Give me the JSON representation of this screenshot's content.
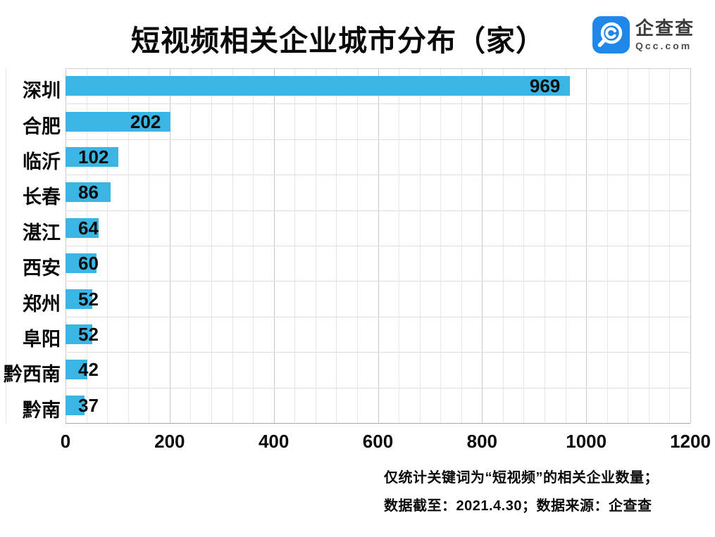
{
  "title": "短视频相关企业城市分布（家）",
  "logo": {
    "name": "企查查",
    "domain": "Qcc.com",
    "brand_color": "#1E87E8"
  },
  "chart_data": {
    "type": "bar",
    "orientation": "horizontal",
    "title": "短视频相关企业城市分布（家）",
    "categories": [
      "深圳",
      "合肥",
      "临沂",
      "长春",
      "湛江",
      "西安",
      "郑州",
      "阜阳",
      "黔西南",
      "黔南"
    ],
    "values": [
      969,
      202,
      102,
      86,
      64,
      60,
      52,
      52,
      42,
      37
    ],
    "xlim": [
      0,
      1200
    ],
    "x_ticks": [
      0,
      200,
      400,
      600,
      800,
      1000,
      1200
    ],
    "minor_tick_step": 40,
    "grid": "on",
    "legend": "none",
    "bar_color": "#3BB6E4",
    "value_label_color": "#0a0a0a"
  },
  "footer": {
    "line1": "仅统计关键词为“短视频”的相关企业数量；",
    "line2": "数据截至：2021.4.30；数据来源：企查查"
  }
}
